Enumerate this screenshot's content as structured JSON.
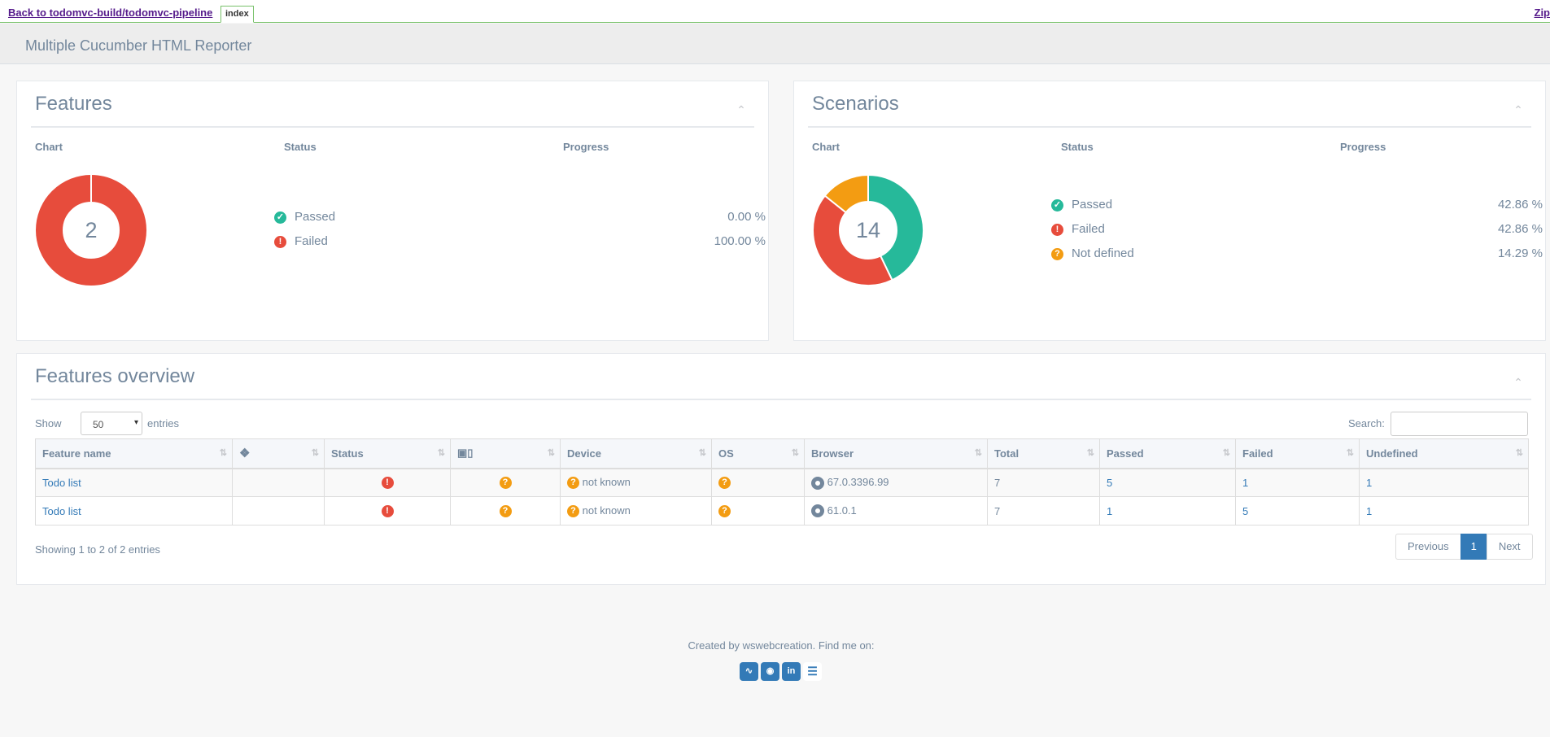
{
  "topbar": {
    "back_link": "Back to todomvc-build/todomvc-pipeline",
    "tab": "index",
    "zip_link": "Zip"
  },
  "header": {
    "title": "Multiple Cucumber HTML Reporter"
  },
  "features_panel": {
    "title": "Features",
    "col_chart": "Chart",
    "col_status": "Status",
    "col_progress": "Progress",
    "total": "2",
    "rows": [
      {
        "label": "Passed",
        "percent": "0.00 %"
      },
      {
        "label": "Failed",
        "percent": "100.00 %"
      }
    ]
  },
  "scenarios_panel": {
    "title": "Scenarios",
    "col_chart": "Chart",
    "col_status": "Status",
    "col_progress": "Progress",
    "total": "14",
    "rows": [
      {
        "label": "Passed",
        "percent": "42.86 %"
      },
      {
        "label": "Failed",
        "percent": "42.86 %"
      },
      {
        "label": "Not defined",
        "percent": "14.29 %"
      }
    ]
  },
  "chart_data": [
    {
      "type": "pie",
      "categories": [
        "Passed",
        "Failed"
      ],
      "values": [
        0,
        100
      ]
    },
    {
      "type": "pie",
      "categories": [
        "Passed",
        "Failed",
        "Not defined"
      ],
      "values": [
        42.86,
        42.86,
        14.29
      ]
    }
  ],
  "overview": {
    "title": "Features overview",
    "show_label": "Show",
    "entries_value": "50",
    "entries_label": "entries",
    "search_label": "Search:",
    "columns": [
      "Feature name",
      "",
      "Status",
      "",
      "Device",
      "OS",
      "Browser",
      "Total",
      "Passed",
      "Failed",
      "Undefined"
    ],
    "rows": [
      {
        "name": "Todo list",
        "device": "not known",
        "browser": "67.0.3396.99",
        "total": "7",
        "passed": "5",
        "failed": "1",
        "undefined": "1"
      },
      {
        "name": "Todo list",
        "device": "not known",
        "browser": "61.0.1",
        "total": "7",
        "passed": "1",
        "failed": "5",
        "undefined": "1"
      }
    ],
    "info": "Showing 1 to 2 of 2 entries",
    "prev": "Previous",
    "page": "1",
    "next": "Next"
  },
  "footer": {
    "text": "Created by wswebcreation. Find me on:",
    "icons": [
      "rss-icon",
      "github-icon",
      "linkedin-icon",
      "stackoverflow-icon"
    ]
  },
  "colors": {
    "passed": "#26b99a",
    "failed": "#e74c3c",
    "undefined": "#f39c12",
    "link": "#337ab7"
  }
}
